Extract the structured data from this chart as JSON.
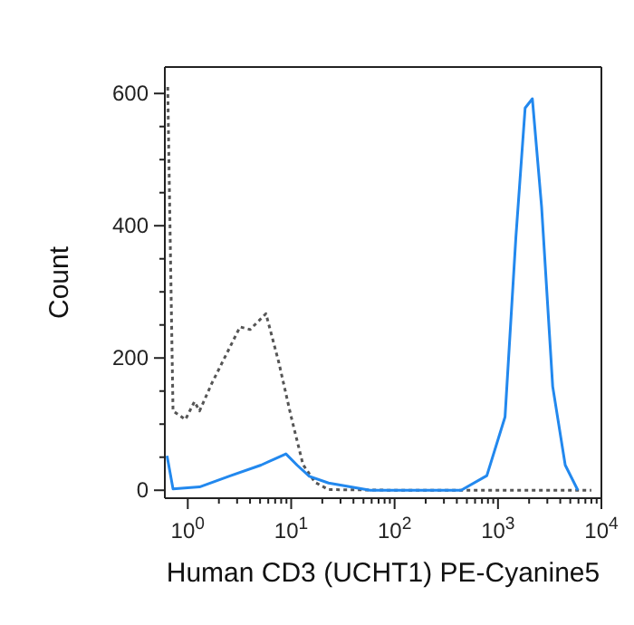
{
  "chart_data": {
    "type": "line",
    "xlabel": "Human CD3 (UCHT1) PE-Cyanine5",
    "ylabel": "Count",
    "log": "x",
    "marker": "none",
    "xlim": [
      0.6,
      10000
    ],
    "ylim": [
      -12,
      640
    ],
    "xticks": [
      {
        "value": 1,
        "label": "10$^{0}$"
      },
      {
        "value": 2,
        "label": null
      },
      {
        "value": 3,
        "label": null
      },
      {
        "value": 4,
        "label": null
      },
      {
        "value": 5,
        "label": null
      },
      {
        "value": 6,
        "label": null
      },
      {
        "value": 7,
        "label": null
      },
      {
        "value": 8,
        "label": null
      },
      {
        "value": 9,
        "label": null
      },
      {
        "value": 10,
        "label": "10$^{1}$"
      },
      {
        "value": 20,
        "label": null
      },
      {
        "value": 30,
        "label": null
      },
      {
        "value": 40,
        "label": null
      },
      {
        "value": 50,
        "label": null
      },
      {
        "value": 60,
        "label": null
      },
      {
        "value": 70,
        "label": null
      },
      {
        "value": 80,
        "label": null
      },
      {
        "value": 90,
        "label": null
      },
      {
        "value": 100,
        "label": "10$^{2}$"
      },
      {
        "value": 200,
        "label": null
      },
      {
        "value": 300,
        "label": null
      },
      {
        "value": 400,
        "label": null
      },
      {
        "value": 500,
        "label": null
      },
      {
        "value": 600,
        "label": null
      },
      {
        "value": 700,
        "label": null
      },
      {
        "value": 800,
        "label": null
      },
      {
        "value": 900,
        "label": null
      },
      {
        "value": 1000,
        "label": "10$^{3}$"
      },
      {
        "value": 2000,
        "label": null
      },
      {
        "value": 3000,
        "label": null
      },
      {
        "value": 4000,
        "label": null
      },
      {
        "value": 5000,
        "label": null
      },
      {
        "value": 6000,
        "label": null
      },
      {
        "value": 7000,
        "label": null
      },
      {
        "value": 8000,
        "label": null
      },
      {
        "value": 9000,
        "label": null
      },
      {
        "value": 10000,
        "label": "10$^{4}$"
      }
    ],
    "yticks": [
      0,
      {
        "value": 50,
        "label": null
      },
      {
        "value": 100,
        "label": null
      },
      {
        "value": 150,
        "label": null
      },
      200,
      {
        "value": 250,
        "label": null
      },
      {
        "value": 300,
        "label": null
      },
      {
        "value": 350,
        "label": null
      },
      400,
      {
        "value": 450,
        "label": null
      },
      {
        "value": 500,
        "label": null
      },
      {
        "value": 550,
        "label": null
      },
      600
    ],
    "series": [
      {
        "color": "#555555",
        "line_style": "dotted",
        "x": [
          0.64,
          0.72,
          0.95,
          1.16,
          1.3,
          1.7,
          3.2,
          4,
          5.7,
          7.6,
          10,
          13,
          17,
          23,
          100,
          1000,
          8000
        ],
        "values": [
          610,
          120,
          107,
          134,
          120,
          161,
          247,
          243,
          267,
          193,
          111,
          39,
          12,
          1,
          0,
          0,
          0
        ]
      },
      {
        "color": "#2288ee",
        "line_style": "solid",
        "x": [
          0.63,
          0.72,
          1.3,
          2.6,
          5.1,
          8.9,
          11.4,
          15,
          23,
          58,
          440,
          780,
          1170,
          1490,
          1830,
          2150,
          2640,
          3380,
          4470,
          5920
        ],
        "values": [
          52,
          2,
          5,
          22,
          38,
          55,
          38,
          21,
          11,
          0,
          0,
          22,
          111,
          383,
          578,
          592,
          429,
          157,
          38,
          0
        ]
      }
    ]
  }
}
